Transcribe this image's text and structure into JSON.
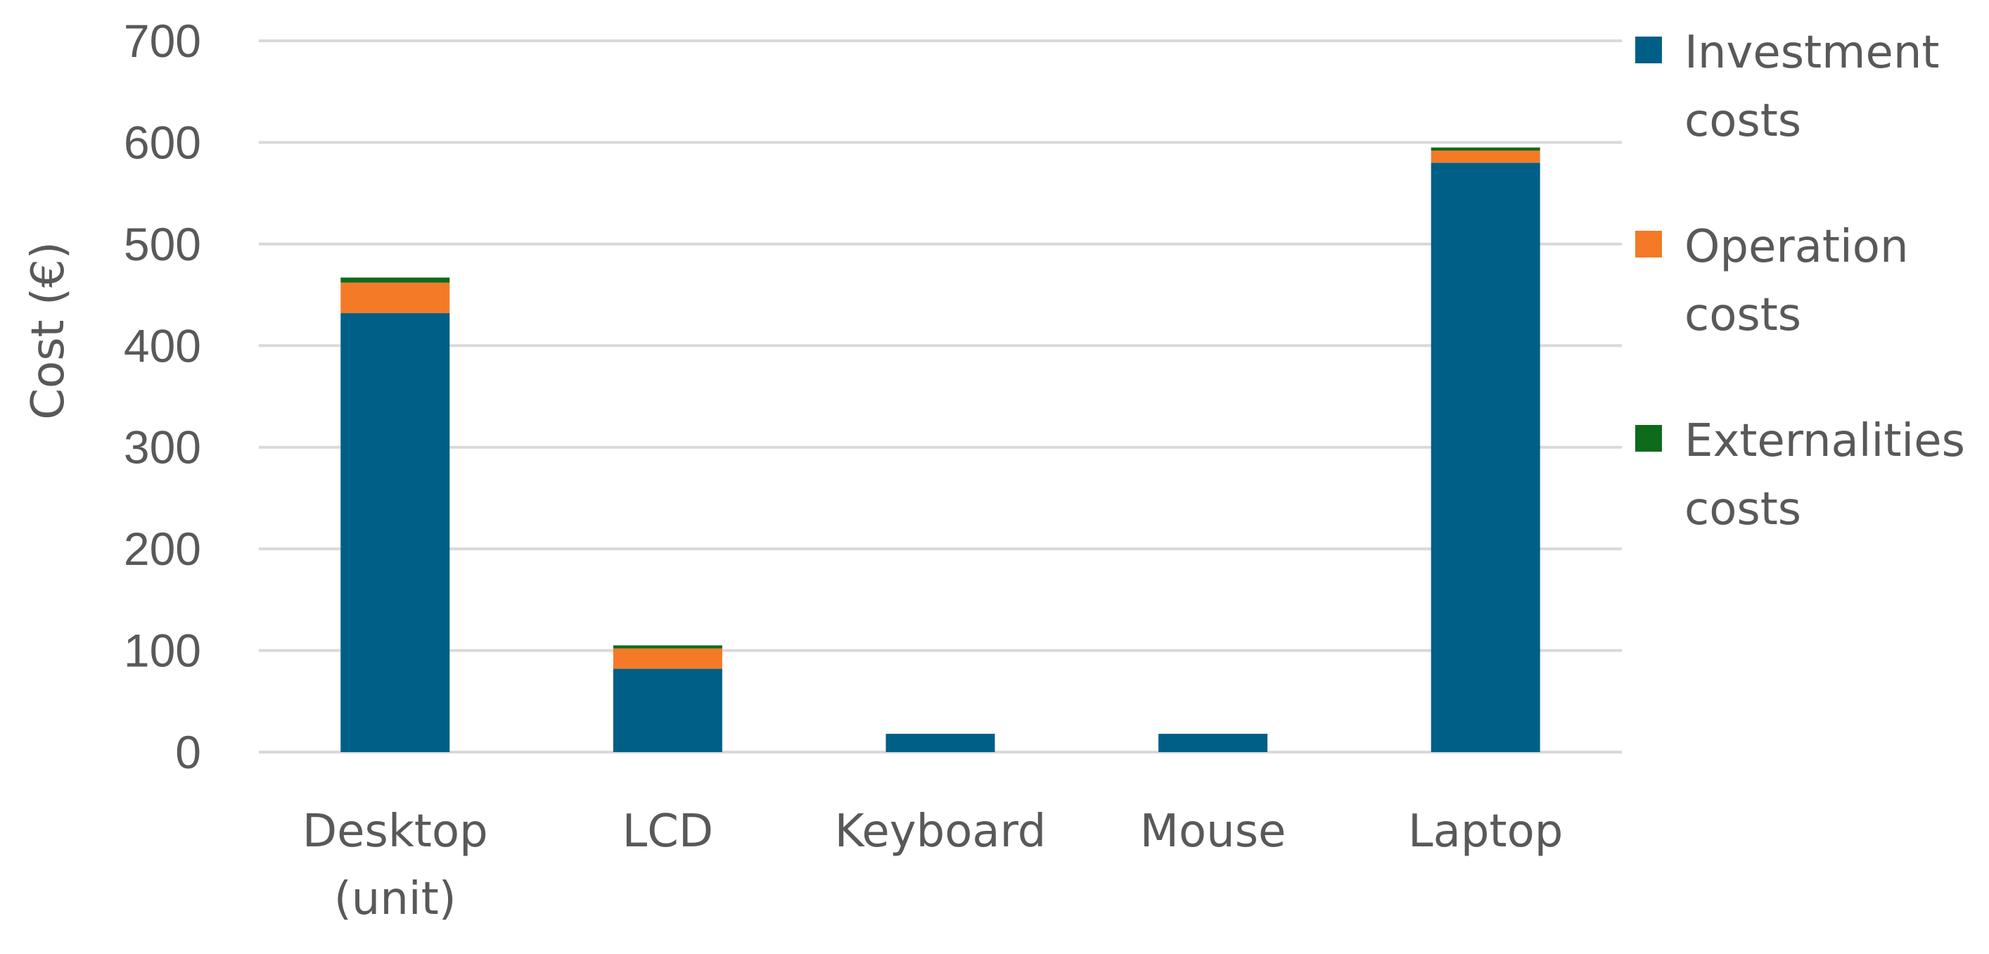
{
  "chart_data": {
    "type": "bar",
    "stacked": true,
    "title": "",
    "xlabel": "",
    "ylabel": "Cost (€)",
    "ylim": [
      0,
      700
    ],
    "yticks": [
      0,
      100,
      200,
      300,
      400,
      500,
      600,
      700
    ],
    "grid": "horizontal",
    "legend_position": "right",
    "categories": [
      [
        "Desktop",
        "(unit)"
      ],
      [
        "LCD"
      ],
      [
        "Keyboard"
      ],
      [
        "Mouse"
      ],
      [
        "Laptop"
      ]
    ],
    "series": [
      {
        "name": [
          "Investment",
          "costs"
        ],
        "color": "#005f87",
        "values": [
          432,
          82,
          18,
          18,
          580
        ]
      },
      {
        "name": [
          "Operation",
          "costs"
        ],
        "color": "#f47a28",
        "values": [
          30,
          20,
          0,
          0,
          12
        ]
      },
      {
        "name": [
          "Externalities",
          "costs"
        ],
        "color": "#0e6b1b",
        "values": [
          5,
          3,
          0,
          0,
          3
        ]
      }
    ]
  }
}
